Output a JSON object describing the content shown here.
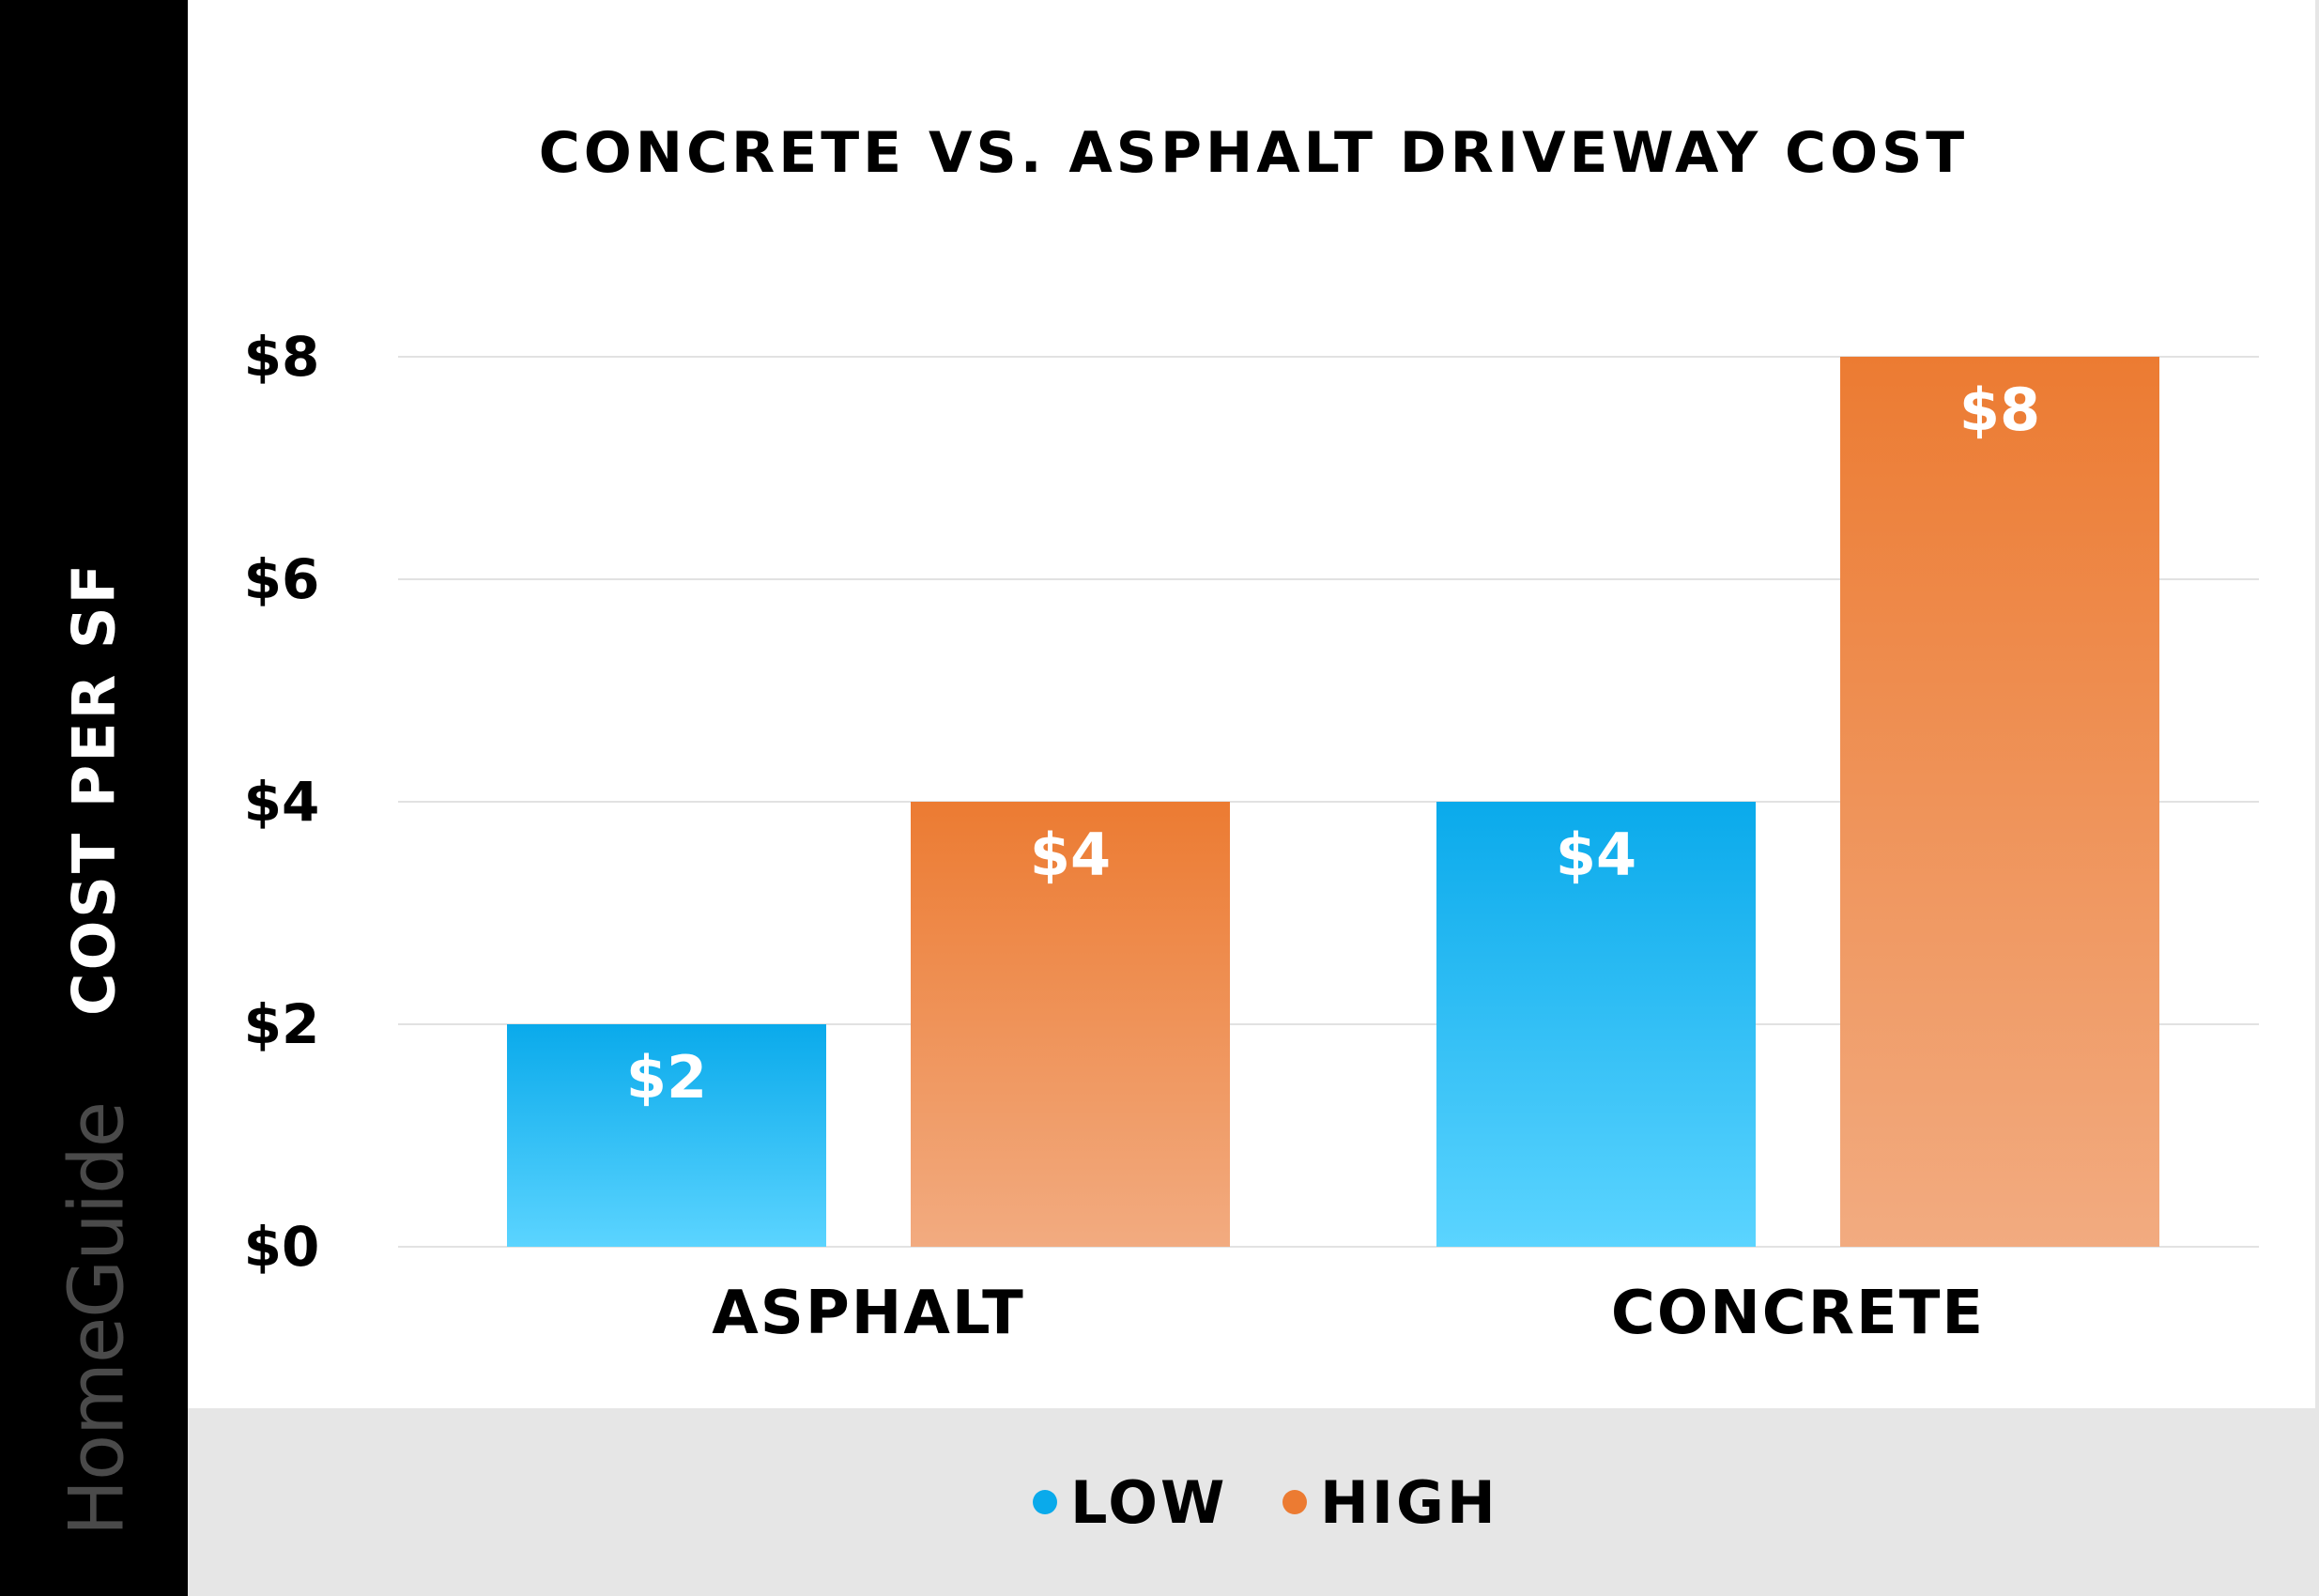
{
  "chart_data": {
    "type": "bar",
    "title": "CONCRETE VS. ASPHALT DRIVEWAY COST",
    "ylabel": "COST PER SF",
    "xlabel": "",
    "categories": [
      "ASPHALT",
      "CONCRETE"
    ],
    "series": [
      {
        "name": "LOW",
        "values": [
          2,
          4
        ],
        "labels": [
          "$2",
          "$4"
        ],
        "color_top": "#0aaaeb",
        "color_bottom": "#5bd4ff"
      },
      {
        "name": "HIGH",
        "values": [
          4,
          8
        ],
        "labels": [
          "$4",
          "$8"
        ],
        "color_top": "#ec7b32",
        "color_bottom": "#f2ab80"
      }
    ],
    "ylim": [
      0,
      8
    ],
    "yticks": [
      0,
      2,
      4,
      6,
      8
    ],
    "ytick_labels": [
      "$0",
      "$2",
      "$4",
      "$6",
      "$8"
    ],
    "grid": true,
    "legend_placement": "bottom"
  },
  "brand": "HomeGuide",
  "colors": {
    "sidebar": "#000000",
    "legend_band": "#e6e6e6",
    "gridline": "#e2e2e2",
    "value_label": "#ffffff"
  }
}
